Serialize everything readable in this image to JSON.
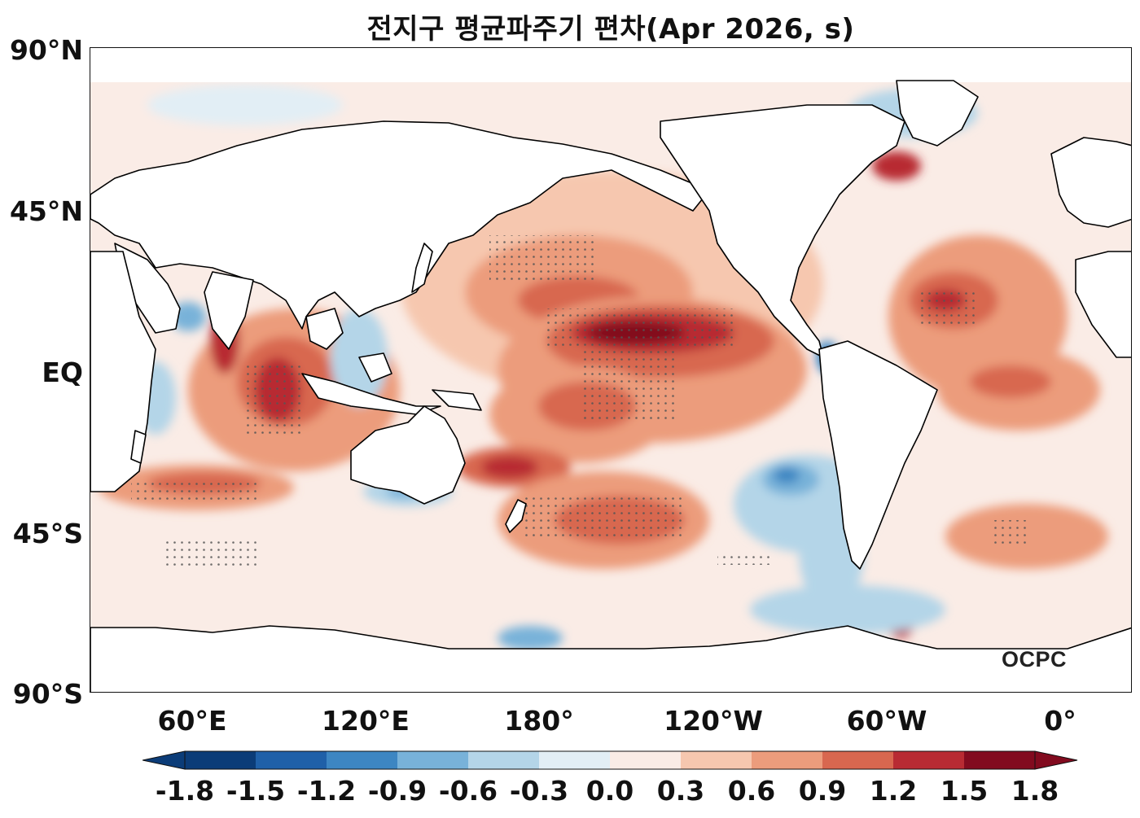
{
  "title": "전지구 평균파주기 편차(Apr 2026, s)",
  "lat_labels": [
    "90°N",
    "45°N",
    "EQ",
    "45°S",
    "90°S"
  ],
  "lon_labels": [
    "60°E",
    "120°E",
    "180°",
    "120°W",
    "60°W",
    "0°"
  ],
  "colorbar": {
    "ticks": [
      "-1.8",
      "-1.5",
      "-1.2",
      "-0.9",
      "-0.6",
      "-0.3",
      "0.0",
      "0.3",
      "0.6",
      "0.9",
      "1.2",
      "1.5",
      "1.8"
    ],
    "colors": [
      "#0b3c78",
      "#1f60a8",
      "#3d86c2",
      "#78b2d9",
      "#b4d5e8",
      "#e2eef5",
      "#faece6",
      "#f6c7af",
      "#ec9c7c",
      "#d8674f",
      "#b82b33",
      "#820b1f"
    ],
    "extend": "both"
  },
  "logo": "OCPC",
  "colors": {
    "land": "#ffffff",
    "coast": "#000000",
    "stipple": "#555555"
  }
}
